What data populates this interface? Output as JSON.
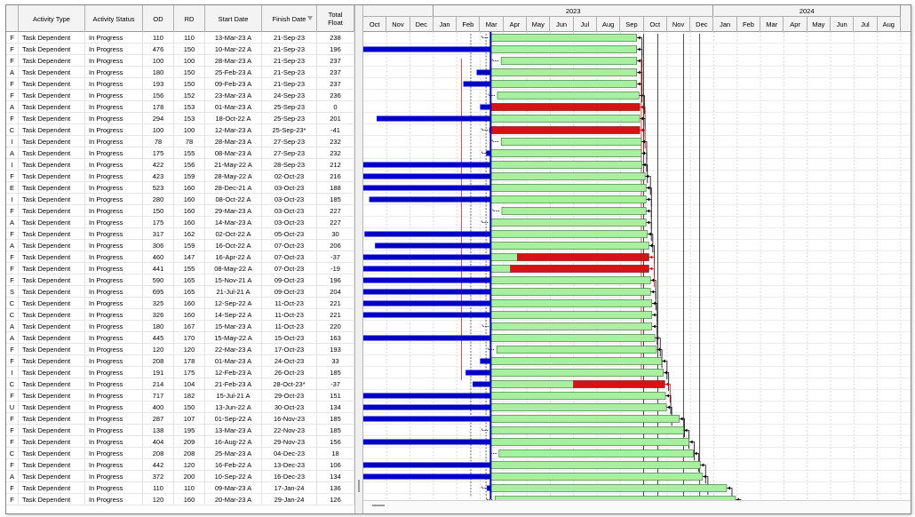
{
  "columns": {
    "checkbox": "",
    "activity_type": "Activity Type",
    "activity_status": "Activity Status",
    "od": "OD",
    "rd": "RD",
    "start_date": "Start Date",
    "finish_date": "Finish Date",
    "total_float": "Total Float"
  },
  "timescale": {
    "years": [
      {
        "label": "",
        "months": 3
      },
      {
        "label": "2023",
        "months": 12
      },
      {
        "label": "2024",
        "months": 8
      }
    ],
    "months": [
      "Oct",
      "Nov",
      "Dec",
      "Jan",
      "Feb",
      "Mar",
      "Apr",
      "May",
      "Jun",
      "Jul",
      "Aug",
      "Sep",
      "Oct",
      "Nov",
      "Dec",
      "Jan",
      "Feb",
      "Mar",
      "Apr",
      "May",
      "Jun",
      "Jul",
      "Aug"
    ],
    "start_month_index": 0,
    "data_date_month": 5.45
  },
  "colors": {
    "progress": "#0000c8",
    "remaining_noncritical": "#a8f0a0",
    "remaining_critical": "#d41414",
    "relationship_normal": "#000000",
    "relationship_critical": "#e00000"
  },
  "rows": [
    {
      "prefix": "F",
      "type": "Task Dependent",
      "status": "In Progress",
      "od": "110",
      "rd": "110",
      "start": "13-Mar-23 A",
      "finish": "21-Sep-23",
      "float": "238",
      "s": 5.42,
      "f": 11.7,
      "crit": false
    },
    {
      "prefix": "F",
      "type": "Task Dependent",
      "status": "In Progress",
      "od": "476",
      "rd": "150",
      "start": "10-Mar-22 A",
      "finish": "21-Sep-23",
      "float": "196",
      "s": -7.0,
      "f": 11.7,
      "crit": false
    },
    {
      "prefix": "F",
      "type": "Task Dependent",
      "status": "In Progress",
      "od": "100",
      "rd": "100",
      "start": "28-Mar-23 A",
      "finish": "21-Sep-23",
      "float": "237",
      "s": 5.9,
      "f": 11.7,
      "crit": false
    },
    {
      "prefix": "A",
      "type": "Task Dependent",
      "status": "In Progress",
      "od": "180",
      "rd": "150",
      "start": "25-Feb-23 A",
      "finish": "21-Sep-23",
      "float": "237",
      "s": 4.85,
      "f": 11.7,
      "crit": false
    },
    {
      "prefix": "F",
      "type": "Task Dependent",
      "status": "In Progress",
      "od": "193",
      "rd": "150",
      "start": "09-Feb-23 A",
      "finish": "21-Sep-23",
      "float": "237",
      "s": 4.28,
      "f": 11.7,
      "crit": false
    },
    {
      "prefix": "F",
      "type": "Task Dependent",
      "status": "In Progress",
      "od": "156",
      "rd": "152",
      "start": "23-Mar-23 A",
      "finish": "24-Sep-23",
      "float": "236",
      "s": 5.74,
      "f": 11.8,
      "crit": false
    },
    {
      "prefix": "A",
      "type": "Task Dependent",
      "status": "In Progress",
      "od": "178",
      "rd": "153",
      "start": "01-Mar-23 A",
      "finish": "25-Sep-23",
      "float": "0",
      "s": 5.0,
      "f": 11.83,
      "crit": true
    },
    {
      "prefix": "F",
      "type": "Task Dependent",
      "status": "In Progress",
      "od": "294",
      "rd": "153",
      "start": "18-Oct-22 A",
      "finish": "25-Sep-23",
      "float": "201",
      "s": 0.57,
      "f": 11.83,
      "crit": false
    },
    {
      "prefix": "C",
      "type": "Task Dependent",
      "status": "In Progress",
      "od": "100",
      "rd": "100",
      "start": "12-Mar-23 A",
      "finish": "25-Sep-23*",
      "float": "-41",
      "s": 5.39,
      "f": 11.83,
      "crit": true
    },
    {
      "prefix": "I",
      "type": "Task Dependent",
      "status": "In Progress",
      "od": "78",
      "rd": "78",
      "start": "28-Mar-23 A",
      "finish": "27-Sep-23",
      "float": "232",
      "s": 5.9,
      "f": 11.9,
      "crit": false
    },
    {
      "prefix": "A",
      "type": "Task Dependent",
      "status": "In Progress",
      "od": "175",
      "rd": "155",
      "start": "08-Mar-23 A",
      "finish": "27-Sep-23",
      "float": "232",
      "s": 5.26,
      "f": 11.9,
      "crit": false
    },
    {
      "prefix": "I",
      "type": "Task Dependent",
      "status": "In Progress",
      "od": "422",
      "rd": "156",
      "start": "21-May-22 A",
      "finish": "28-Sep-23",
      "float": "212",
      "s": -4.4,
      "f": 11.93,
      "crit": false
    },
    {
      "prefix": "F",
      "type": "Task Dependent",
      "status": "In Progress",
      "od": "423",
      "rd": "159",
      "start": "28-May-22 A",
      "finish": "02-Oct-23",
      "float": "216",
      "s": -4.1,
      "f": 12.06,
      "crit": false
    },
    {
      "prefix": "E",
      "type": "Task Dependent",
      "status": "In Progress",
      "od": "523",
      "rd": "160",
      "start": "28-Dec-21 A",
      "finish": "03-Oct-23",
      "float": "188",
      "s": -9.1,
      "f": 12.1,
      "crit": false
    },
    {
      "prefix": "I",
      "type": "Task Dependent",
      "status": "In Progress",
      "od": "280",
      "rd": "160",
      "start": "08-Oct-22 A",
      "finish": "03-Oct-23",
      "float": "185",
      "s": 0.25,
      "f": 12.1,
      "crit": false
    },
    {
      "prefix": "F",
      "type": "Task Dependent",
      "status": "In Progress",
      "od": "150",
      "rd": "160",
      "start": "29-Mar-23 A",
      "finish": "03-Oct-23",
      "float": "227",
      "s": 5.93,
      "f": 12.1,
      "crit": false
    },
    {
      "prefix": "A",
      "type": "Task Dependent",
      "status": "In Progress",
      "od": "175",
      "rd": "160",
      "start": "14-Mar-23 A",
      "finish": "03-Oct-23",
      "float": "227",
      "s": 5.45,
      "f": 12.1,
      "crit": false
    },
    {
      "prefix": "F",
      "type": "Task Dependent",
      "status": "In Progress",
      "od": "317",
      "rd": "162",
      "start": "02-Oct-22 A",
      "finish": "05-Oct-23",
      "float": "30",
      "s": 0.05,
      "f": 12.16,
      "crit": false
    },
    {
      "prefix": "A",
      "type": "Task Dependent",
      "status": "In Progress",
      "od": "306",
      "rd": "159",
      "start": "16-Oct-22 A",
      "finish": "07-Oct-23",
      "float": "206",
      "s": 0.5,
      "f": 12.22,
      "crit": false
    },
    {
      "prefix": "F",
      "type": "Task Dependent",
      "status": "In Progress",
      "od": "460",
      "rd": "147",
      "start": "16-Apr-22 A",
      "finish": "07-Oct-23",
      "float": "-37",
      "s": -5.5,
      "f": 12.22,
      "crit": true,
      "critStart": 6.6
    },
    {
      "prefix": "F",
      "type": "Task Dependent",
      "status": "In Progress",
      "od": "441",
      "rd": "155",
      "start": "08-May-22 A",
      "finish": "07-Oct-23",
      "float": "-19",
      "s": -4.8,
      "f": 12.22,
      "crit": true,
      "critStart": 6.3
    },
    {
      "prefix": "F",
      "type": "Task Dependent",
      "status": "In Progress",
      "od": "590",
      "rd": "165",
      "start": "15-Nov-21 A",
      "finish": "09-Oct-23",
      "float": "196",
      "s": -10.5,
      "f": 12.29,
      "crit": false
    },
    {
      "prefix": "S",
      "type": "Task Dependent",
      "status": "In Progress",
      "od": "695",
      "rd": "165",
      "start": "21-Jul-21 A",
      "finish": "09-Oct-23",
      "float": "204",
      "s": -14.3,
      "f": 12.29,
      "crit": false
    },
    {
      "prefix": "C",
      "type": "Task Dependent",
      "status": "In Progress",
      "od": "325",
      "rd": "160",
      "start": "12-Sep-22 A",
      "finish": "11-Oct-23",
      "float": "221",
      "s": -0.6,
      "f": 12.35,
      "crit": false
    },
    {
      "prefix": "C",
      "type": "Task Dependent",
      "status": "In Progress",
      "od": "326",
      "rd": "160",
      "start": "14-Sep-22 A",
      "finish": "11-Oct-23",
      "float": "221",
      "s": -0.55,
      "f": 12.35,
      "crit": false
    },
    {
      "prefix": "A",
      "type": "Task Dependent",
      "status": "In Progress",
      "od": "180",
      "rd": "167",
      "start": "15-Mar-23 A",
      "finish": "11-Oct-23",
      "float": "220",
      "s": 5.48,
      "f": 12.35,
      "crit": false
    },
    {
      "prefix": "A",
      "type": "Task Dependent",
      "status": "In Progress",
      "od": "445",
      "rd": "170",
      "start": "15-May-22 A",
      "finish": "15-Oct-23",
      "float": "163",
      "s": -4.6,
      "f": 12.48,
      "crit": false
    },
    {
      "prefix": "F",
      "type": "Task Dependent",
      "status": "In Progress",
      "od": "120",
      "rd": "120",
      "start": "22-Mar-23 A",
      "finish": "17-Oct-23",
      "float": "193",
      "s": 5.71,
      "f": 12.55,
      "crit": false
    },
    {
      "prefix": "F",
      "type": "Task Dependent",
      "status": "In Progress",
      "od": "208",
      "rd": "178",
      "start": "01-Mar-23 A",
      "finish": "24-Oct-23",
      "float": "33",
      "s": 5.0,
      "f": 12.77,
      "crit": false
    },
    {
      "prefix": "I",
      "type": "Task Dependent",
      "status": "In Progress",
      "od": "191",
      "rd": "175",
      "start": "12-Feb-23 A",
      "finish": "26-Oct-23",
      "float": "185",
      "s": 4.38,
      "f": 12.84,
      "crit": false
    },
    {
      "prefix": "C",
      "type": "Task Dependent",
      "status": "In Progress",
      "od": "214",
      "rd": "104",
      "start": "21-Feb-23 A",
      "finish": "28-Oct-23*",
      "float": "-37",
      "s": 4.68,
      "f": 12.9,
      "crit": true,
      "critStart": 9.0
    },
    {
      "prefix": "F",
      "type": "Task Dependent",
      "status": "In Progress",
      "od": "717",
      "rd": "182",
      "start": "15-Jul-21 A",
      "finish": "29-Oct-23",
      "float": "151",
      "s": -14.5,
      "f": 12.93,
      "crit": false
    },
    {
      "prefix": "U",
      "type": "Task Dependent",
      "status": "In Progress",
      "od": "400",
      "rd": "150",
      "start": "13-Jun-22 A",
      "finish": "30-Oct-23",
      "float": "134",
      "s": -3.6,
      "f": 12.97,
      "crit": false
    },
    {
      "prefix": "F",
      "type": "Task Dependent",
      "status": "In Progress",
      "od": "287",
      "rd": "107",
      "start": "01-Sep-22 A",
      "finish": "16-Nov-23",
      "float": "185",
      "s": -1.0,
      "f": 13.52,
      "crit": false
    },
    {
      "prefix": "F",
      "type": "Task Dependent",
      "status": "In Progress",
      "od": "138",
      "rd": "195",
      "start": "13-Mar-23 A",
      "finish": "22-Nov-23",
      "float": "185",
      "s": 5.42,
      "f": 13.71,
      "crit": false
    },
    {
      "prefix": "F",
      "type": "Task Dependent",
      "status": "In Progress",
      "od": "404",
      "rd": "209",
      "start": "16-Aug-22 A",
      "finish": "29-Nov-23",
      "float": "156",
      "s": -1.5,
      "f": 13.94,
      "crit": false
    },
    {
      "prefix": "C",
      "type": "Task Dependent",
      "status": "In Progress",
      "od": "208",
      "rd": "208",
      "start": "25-Mar-23 A",
      "finish": "04-Dec-23",
      "float": "18",
      "s": 5.81,
      "f": 14.13,
      "crit": false
    },
    {
      "prefix": "F",
      "type": "Task Dependent",
      "status": "In Progress",
      "od": "442",
      "rd": "120",
      "start": "16-Feb-22 A",
      "finish": "13-Dec-23",
      "float": "106",
      "s": -7.5,
      "f": 14.42,
      "crit": false
    },
    {
      "prefix": "A",
      "type": "Task Dependent",
      "status": "In Progress",
      "od": "372",
      "rd": "200",
      "start": "10-Sep-22 A",
      "finish": "16-Dec-23",
      "float": "134",
      "s": -0.7,
      "f": 14.52,
      "crit": false
    },
    {
      "prefix": "F",
      "type": "Task Dependent",
      "status": "In Progress",
      "od": "110",
      "rd": "110",
      "start": "09-Mar-23 A",
      "finish": "17-Jan-24",
      "float": "136",
      "s": 5.29,
      "f": 15.55,
      "crit": false
    },
    {
      "prefix": "F",
      "type": "Task Dependent",
      "status": "In Progress",
      "od": "120",
      "rd": "160",
      "start": "20-Mar-23 A",
      "finish": "29-Jan-24",
      "float": "126",
      "s": 5.64,
      "f": 15.93,
      "crit": false
    }
  ]
}
